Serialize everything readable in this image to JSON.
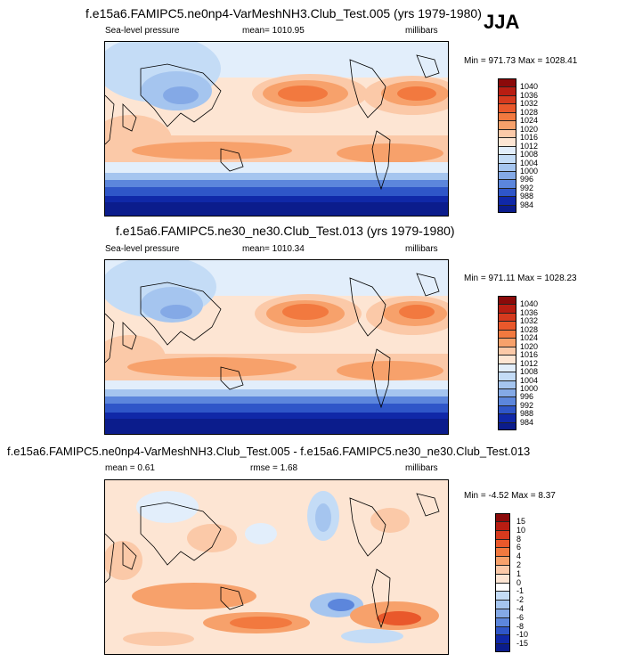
{
  "season_label": "JJA",
  "chart_data": [
    {
      "type": "heatmap",
      "title": "f.e15a6.FAMIPC5.ne0np4-VarMeshNH3.Club_Test.005 (yrs 1979-1980)",
      "left_label": "Sea-level pressure",
      "center_label": "mean= 1010.95",
      "units": "millibars",
      "stats": "Min = 971.73 Max = 1028.41",
      "colorbar_levels": [
        "1040",
        "1036",
        "1032",
        "1028",
        "1024",
        "1020",
        "1016",
        "1012",
        "1008",
        "1004",
        "1000",
        "996",
        "992",
        "988",
        "984"
      ],
      "colorbar_colors": [
        "#8b0a0a",
        "#b81d12",
        "#d63a1e",
        "#e9582b",
        "#f2793f",
        "#f7a16b",
        "#fbc9a8",
        "#fde5d3",
        "#e2eefb",
        "#c4dcf6",
        "#a5c5ef",
        "#84a9e6",
        "#5c86dc",
        "#2f56c8",
        "#1028a8",
        "#0b1c8c"
      ]
    },
    {
      "type": "heatmap",
      "title": "f.e15a6.FAMIPC5.ne30_ne30.Club_Test.013 (yrs 1979-1980)",
      "left_label": "Sea-level pressure",
      "center_label": "mean= 1010.34",
      "units": "millibars",
      "stats": "Min = 971.11 Max = 1028.23",
      "colorbar_levels": [
        "1040",
        "1036",
        "1032",
        "1028",
        "1024",
        "1020",
        "1016",
        "1012",
        "1008",
        "1004",
        "1000",
        "996",
        "992",
        "988",
        "984"
      ],
      "colorbar_colors": [
        "#8b0a0a",
        "#b81d12",
        "#d63a1e",
        "#e9582b",
        "#f2793f",
        "#f7a16b",
        "#fbc9a8",
        "#fde5d3",
        "#e2eefb",
        "#c4dcf6",
        "#a5c5ef",
        "#84a9e6",
        "#5c86dc",
        "#2f56c8",
        "#1028a8",
        "#0b1c8c"
      ]
    },
    {
      "type": "heatmap",
      "title": "f.e15a6.FAMIPC5.ne0np4-VarMeshNH3.Club_Test.005 - f.e15a6.FAMIPC5.ne30_ne30.Club_Test.013",
      "left_label": "mean =   0.61",
      "center_label": "rmse =   1.68",
      "units": "millibars",
      "stats": "Min =  -4.52 Max =   8.37",
      "colorbar_levels": [
        "15",
        "10",
        "8",
        "6",
        "4",
        "2",
        "1",
        "0",
        "-1",
        "-2",
        "-4",
        "-6",
        "-8",
        "-10",
        "-15"
      ],
      "colorbar_colors": [
        "#8b0a0a",
        "#b81d12",
        "#d63a1e",
        "#e9582b",
        "#f2793f",
        "#f7a16b",
        "#fbc9a8",
        "#fde5d3",
        "#ffffff",
        "#c4dcf6",
        "#a5c5ef",
        "#84a9e6",
        "#5c86dc",
        "#2f56c8",
        "#1028a8",
        "#0b1c8c"
      ]
    }
  ]
}
